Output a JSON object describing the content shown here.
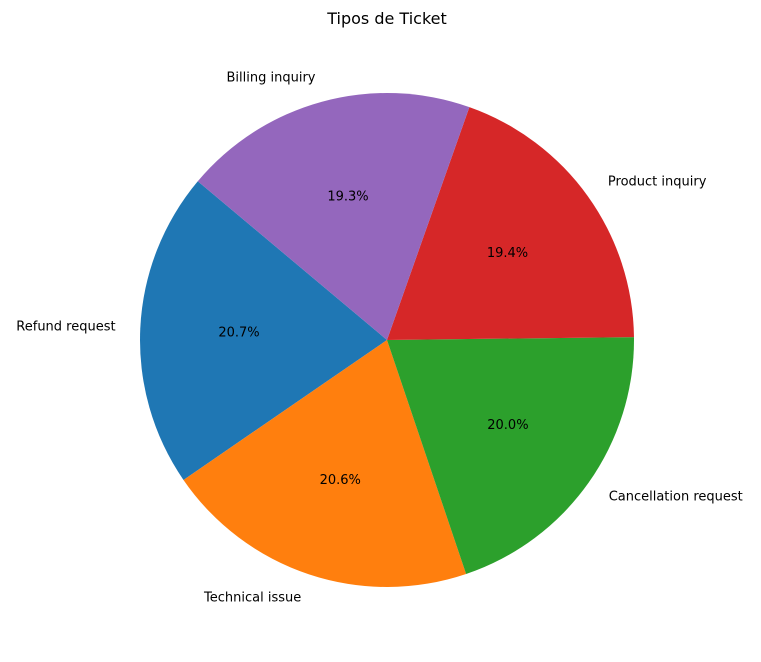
{
  "chart_data": {
    "type": "pie",
    "title": "Tipos de Ticket",
    "start_angle_deg": 140,
    "direction": "counterclockwise",
    "slices": [
      {
        "label": "Refund request",
        "value": 20.7,
        "pct_text": "20.7%",
        "color": "#1f77b4"
      },
      {
        "label": "Technical issue",
        "value": 20.6,
        "pct_text": "20.6%",
        "color": "#ff7f0e"
      },
      {
        "label": "Cancellation request",
        "value": 20.0,
        "pct_text": "20.0%",
        "color": "#2ca02c"
      },
      {
        "label": "Product inquiry",
        "value": 19.4,
        "pct_text": "19.4%",
        "color": "#d62728"
      },
      {
        "label": "Billing inquiry",
        "value": 19.3,
        "pct_text": "19.3%",
        "color": "#9467bd"
      }
    ]
  }
}
